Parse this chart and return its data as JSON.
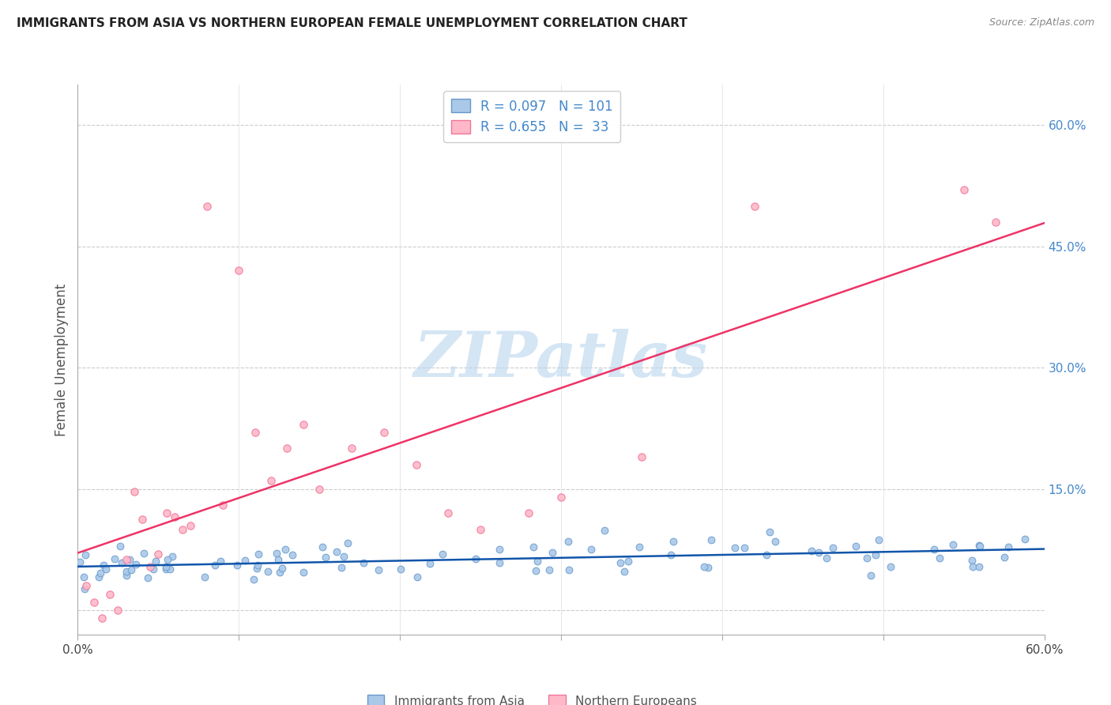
{
  "title": "IMMIGRANTS FROM ASIA VS NORTHERN EUROPEAN FEMALE UNEMPLOYMENT CORRELATION CHART",
  "source": "Source: ZipAtlas.com",
  "ylabel": "Female Unemployment",
  "xlim": [
    0.0,
    0.6
  ],
  "ylim": [
    -0.03,
    0.65
  ],
  "yticks_right": [
    0.0,
    0.15,
    0.3,
    0.45,
    0.6
  ],
  "ytick_right_labels": [
    "",
    "15.0%",
    "30.0%",
    "45.0%",
    "60.0%"
  ],
  "watermark": "ZIPatlas",
  "watermark_color": "#b8d4ee",
  "background_color": "#ffffff",
  "grid_color": "#cccccc",
  "series1_color_face": "#aac8e8",
  "series1_color_edge": "#6699cc",
  "series1_line_color": "#1155aa",
  "series2_color_face": "#ffb8c8",
  "series2_color_edge": "#ee7799",
  "series2_line_color": "#ee3366",
  "R1": 0.097,
  "N1": 101,
  "R2": 0.655,
  "N2": 33,
  "legend_label1": "Immigrants from Asia",
  "legend_label2": "Northern Europeans"
}
